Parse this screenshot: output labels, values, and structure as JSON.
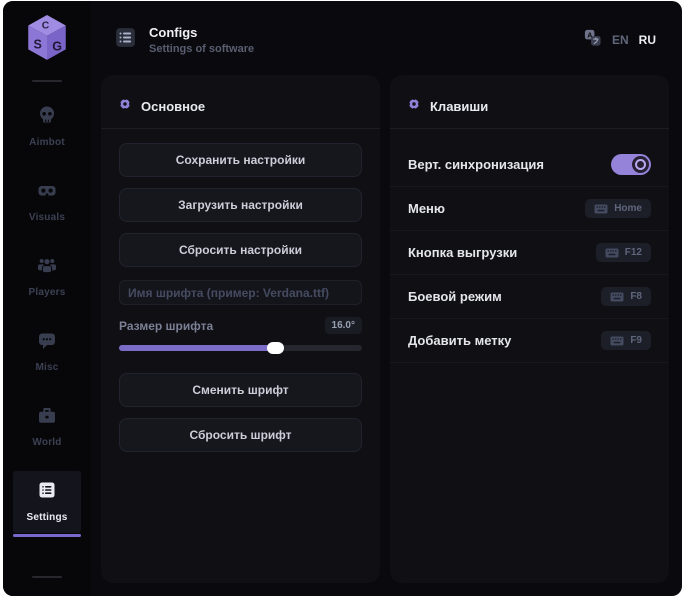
{
  "logo": {
    "letter_c": "C",
    "letter_s": "S",
    "letter_g": "G"
  },
  "header": {
    "title": "Configs",
    "subtitle": "Settings of software",
    "lang_en": "EN",
    "lang_ru": "RU"
  },
  "sidebar": {
    "items": [
      {
        "label": "Aimbot"
      },
      {
        "label": "Visuals"
      },
      {
        "label": "Players"
      },
      {
        "label": "Misc"
      },
      {
        "label": "World"
      },
      {
        "label": "Settings"
      }
    ],
    "active_item": "Settings"
  },
  "main_panel": {
    "title": "Основное",
    "buttons": {
      "save": "Сохранить настройки",
      "load": "Загрузить настройки",
      "reset": "Сбросить настройки",
      "change_font": "Сменить шрифт",
      "reset_font": "Сбросить шрифт"
    },
    "font_name_placeholder": "Имя шрифта (пример: Verdana.ttf)",
    "font_size_label": "Размер шрифта",
    "font_size_value": "16.0°",
    "slider_percent": 64
  },
  "keys_panel": {
    "title": "Клавиши",
    "rows": [
      {
        "label": "Верт. синхронизация",
        "type": "toggle",
        "value": true
      },
      {
        "label": "Меню",
        "type": "key",
        "key": "Home"
      },
      {
        "label": "Кнопка выгрузки",
        "type": "key",
        "key": "F12"
      },
      {
        "label": "Боевой режим",
        "type": "key",
        "key": "F8"
      },
      {
        "label": "Добавить метку",
        "type": "key",
        "key": "F9"
      }
    ]
  },
  "colors": {
    "accent": "#9583d9",
    "slider_fill": "#7b6cc7",
    "underline": "#7a68cf",
    "card_bg": "#0f0f14",
    "window_bg": "#0a0a0e"
  }
}
